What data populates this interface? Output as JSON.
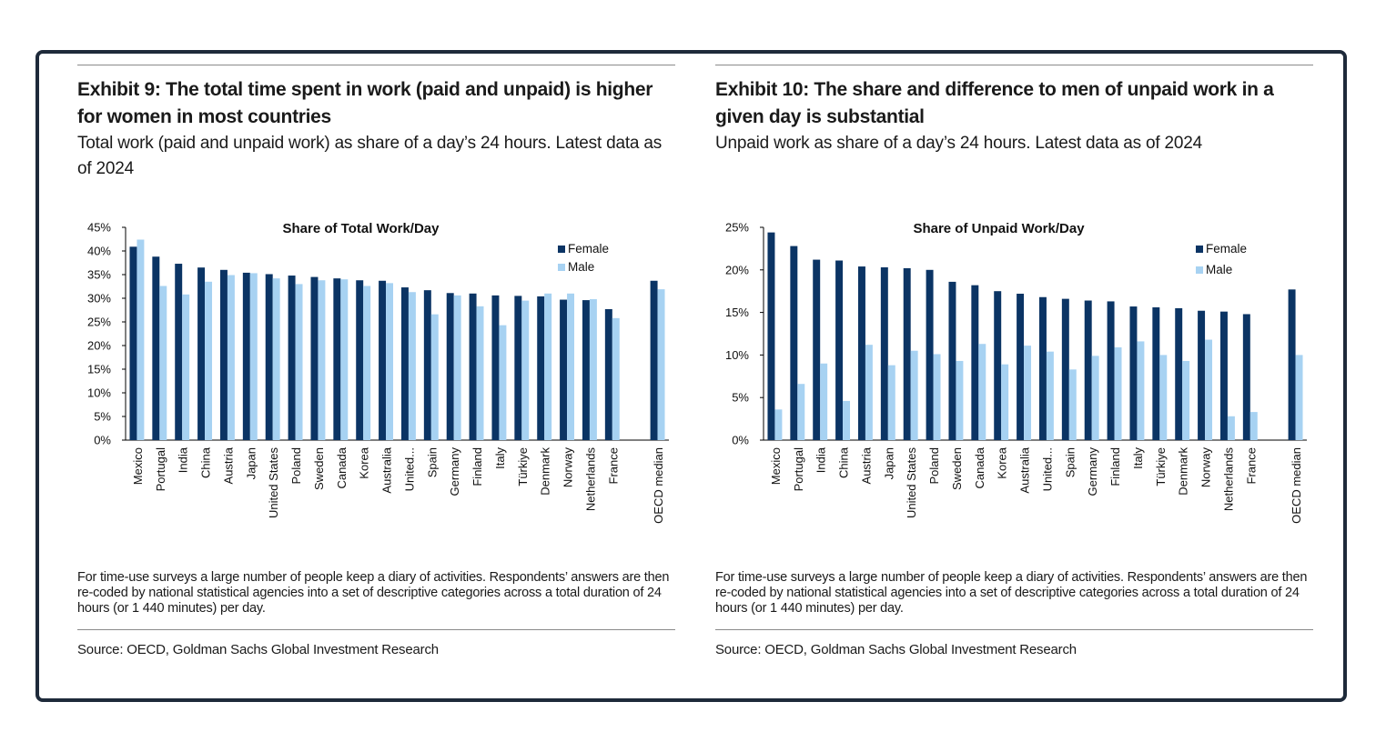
{
  "exhibits": [
    {
      "title": "Exhibit 9: The total time spent in work (paid and unpaid) is higher for women in most countries",
      "subtitle": "Total work (paid and unpaid work) as share of a day’s 24 hours. Latest data as of 2024",
      "note": "For time-use surveys a large number of people keep a diary of activities. Respondents’ answers are then re-coded by national statistical agencies into a set of descriptive categories across a total duration of 24 hours (or 1 440 minutes) per day.",
      "source": "Source: OECD, Goldman Sachs Global Investment Research"
    },
    {
      "title": "Exhibit 10: The share and difference to men of unpaid work in a given day is substantial",
      "subtitle": "Unpaid work as share of a day’s 24 hours. Latest data as of 2024",
      "note": "For time-use surveys a large number of people keep a diary of activities. Respondents’ answers are then re-coded by national statistical agencies into a set of descriptive categories across a total duration of 24 hours (or 1 440 minutes) per day.",
      "source": "Source: OECD, Goldman Sachs Global Investment Research"
    }
  ],
  "colors": {
    "female": "#0b3464",
    "male": "#a7d2f2",
    "frame": "#1e2a3a"
  },
  "chart_data": [
    {
      "type": "bar",
      "title": "Share of Total Work/Day",
      "xlabel": "",
      "ylabel": "",
      "ylim": [
        0,
        45
      ],
      "yticks": [
        0,
        5,
        10,
        15,
        20,
        25,
        30,
        35,
        40,
        45
      ],
      "ytick_labels": [
        "0%",
        "5%",
        "10%",
        "15%",
        "20%",
        "25%",
        "30%",
        "35%",
        "40%",
        "45%"
      ],
      "categories": [
        "Mexico",
        "Portugal",
        "India",
        "China",
        "Austria",
        "Japan",
        "United States",
        "Poland",
        "Sweden",
        "Canada",
        "Korea",
        "Australia",
        "United...",
        "Spain",
        "Germany",
        "Finland",
        "Italy",
        "Türkiye",
        "Denmark",
        "Norway",
        "Netherlands",
        "France",
        "",
        "OECD median"
      ],
      "series": [
        {
          "name": "Female",
          "values": [
            40.9,
            38.8,
            37.3,
            36.5,
            36.0,
            35.4,
            35.1,
            34.8,
            34.5,
            34.2,
            33.8,
            33.7,
            32.3,
            31.7,
            31.1,
            31.0,
            30.6,
            30.5,
            30.4,
            29.7,
            29.6,
            27.7,
            null,
            33.7
          ]
        },
        {
          "name": "Male",
          "values": [
            42.4,
            32.6,
            30.8,
            33.5,
            34.9,
            35.3,
            34.2,
            33.0,
            33.8,
            34.0,
            32.6,
            33.2,
            31.3,
            26.6,
            30.6,
            28.3,
            24.3,
            29.5,
            31.0,
            31.0,
            29.8,
            25.8,
            null,
            31.9
          ]
        }
      ],
      "legend": "top-right",
      "grid": false
    },
    {
      "type": "bar",
      "title": "Share of Unpaid Work/Day",
      "xlabel": "",
      "ylabel": "",
      "ylim": [
        0,
        25
      ],
      "yticks": [
        0,
        5,
        10,
        15,
        20,
        25
      ],
      "ytick_labels": [
        "0%",
        "5%",
        "10%",
        "15%",
        "20%",
        "25%"
      ],
      "categories": [
        "Mexico",
        "Portugal",
        "India",
        "China",
        "Austria",
        "Japan",
        "United States",
        "Poland",
        "Sweden",
        "Canada",
        "Korea",
        "Australia",
        "United...",
        "Spain",
        "Germany",
        "Finland",
        "Italy",
        "Türkiye",
        "Denmark",
        "Norway",
        "Netherlands",
        "France",
        "",
        "OECD median"
      ],
      "series": [
        {
          "name": "Female",
          "values": [
            24.4,
            22.8,
            21.2,
            21.1,
            20.4,
            20.3,
            20.2,
            20.0,
            18.6,
            18.2,
            17.5,
            17.2,
            16.8,
            16.6,
            16.4,
            16.3,
            15.7,
            15.6,
            15.5,
            15.2,
            15.1,
            14.8,
            null,
            17.7
          ]
        },
        {
          "name": "Male",
          "values": [
            3.6,
            6.6,
            9.0,
            4.6,
            11.2,
            8.8,
            10.5,
            10.1,
            9.3,
            11.3,
            8.9,
            11.1,
            10.4,
            8.3,
            9.9,
            10.9,
            11.6,
            10.0,
            9.3,
            11.8,
            2.8,
            3.3,
            null,
            10.0
          ]
        }
      ],
      "legend": "top-right",
      "grid": false
    }
  ]
}
